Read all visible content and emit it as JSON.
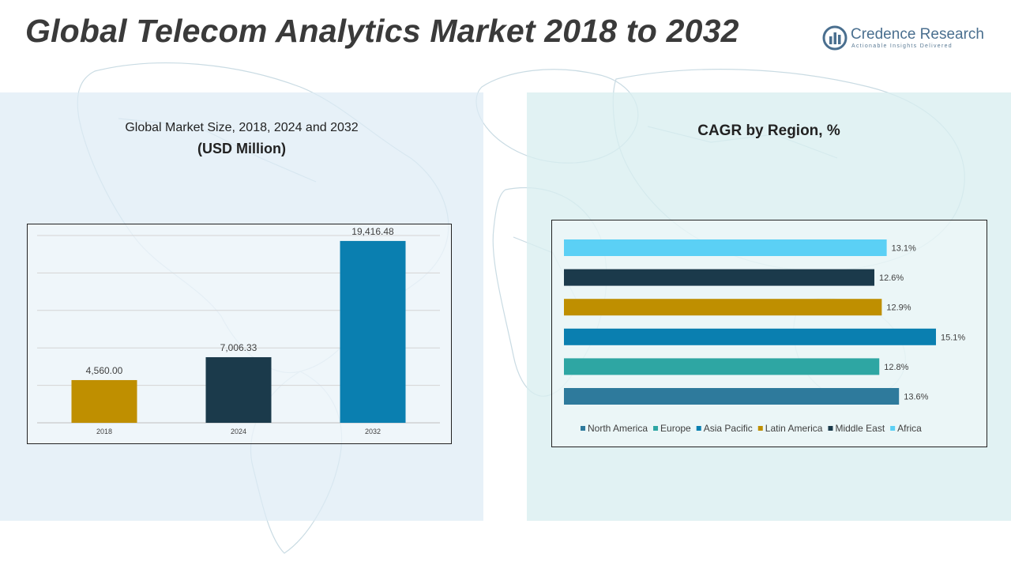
{
  "header": {
    "title": "Global Telecom Analytics Market 2018 to 2032",
    "brand_name": "Credence Research",
    "brand_tagline": "Actionable Insights Delivered"
  },
  "left_panel": {
    "subtitle": "Global Market Size, 2018, 2024 and 2032",
    "unit": "(USD Million)"
  },
  "right_panel": {
    "title": "CAGR by Region, %"
  },
  "colors": {
    "gold": "#bf8f00",
    "navy": "#1b3a4b",
    "blue": "#0a7fb0",
    "teal": "#2ea6a3",
    "steel": "#2e7a9c",
    "light_blue": "#5bd0f5"
  },
  "chart_data": [
    {
      "type": "bar",
      "categories": [
        "2018",
        "2024",
        "2032"
      ],
      "values": [
        4560.0,
        7006.33,
        19416.48
      ],
      "value_labels": [
        "4,560.00",
        "7,006.33",
        "19,416.48"
      ],
      "colors": [
        "#bf8f00",
        "#1b3a4b",
        "#0a7fb0"
      ],
      "ylim": [
        0,
        20000
      ],
      "grid": true,
      "legend": "none"
    },
    {
      "type": "bar",
      "orientation": "horizontal",
      "categories": [
        "Africa",
        "Middle East",
        "Latin America",
        "Asia Pacific",
        "Europe",
        "North America"
      ],
      "values": [
        13.1,
        12.6,
        12.9,
        15.1,
        12.8,
        13.6
      ],
      "value_labels": [
        "13.1%",
        "12.6%",
        "12.9%",
        "15.1%",
        "12.8%",
        "13.6%"
      ],
      "colors": [
        "#5bd0f5",
        "#1b3a4b",
        "#bf8f00",
        "#0a7fb0",
        "#2ea6a3",
        "#2e7a9c"
      ],
      "legend_entries": [
        {
          "label": "North America",
          "color": "#2e7a9c"
        },
        {
          "label": "Europe",
          "color": "#2ea6a3"
        },
        {
          "label": "Asia Pacific",
          "color": "#0a7fb0"
        },
        {
          "label": "Latin America",
          "color": "#bf8f00"
        },
        {
          "label": "Middle East",
          "color": "#1b3a4b"
        },
        {
          "label": "Africa",
          "color": "#5bd0f5"
        }
      ],
      "legend_position": "bottom",
      "grid": false
    }
  ]
}
